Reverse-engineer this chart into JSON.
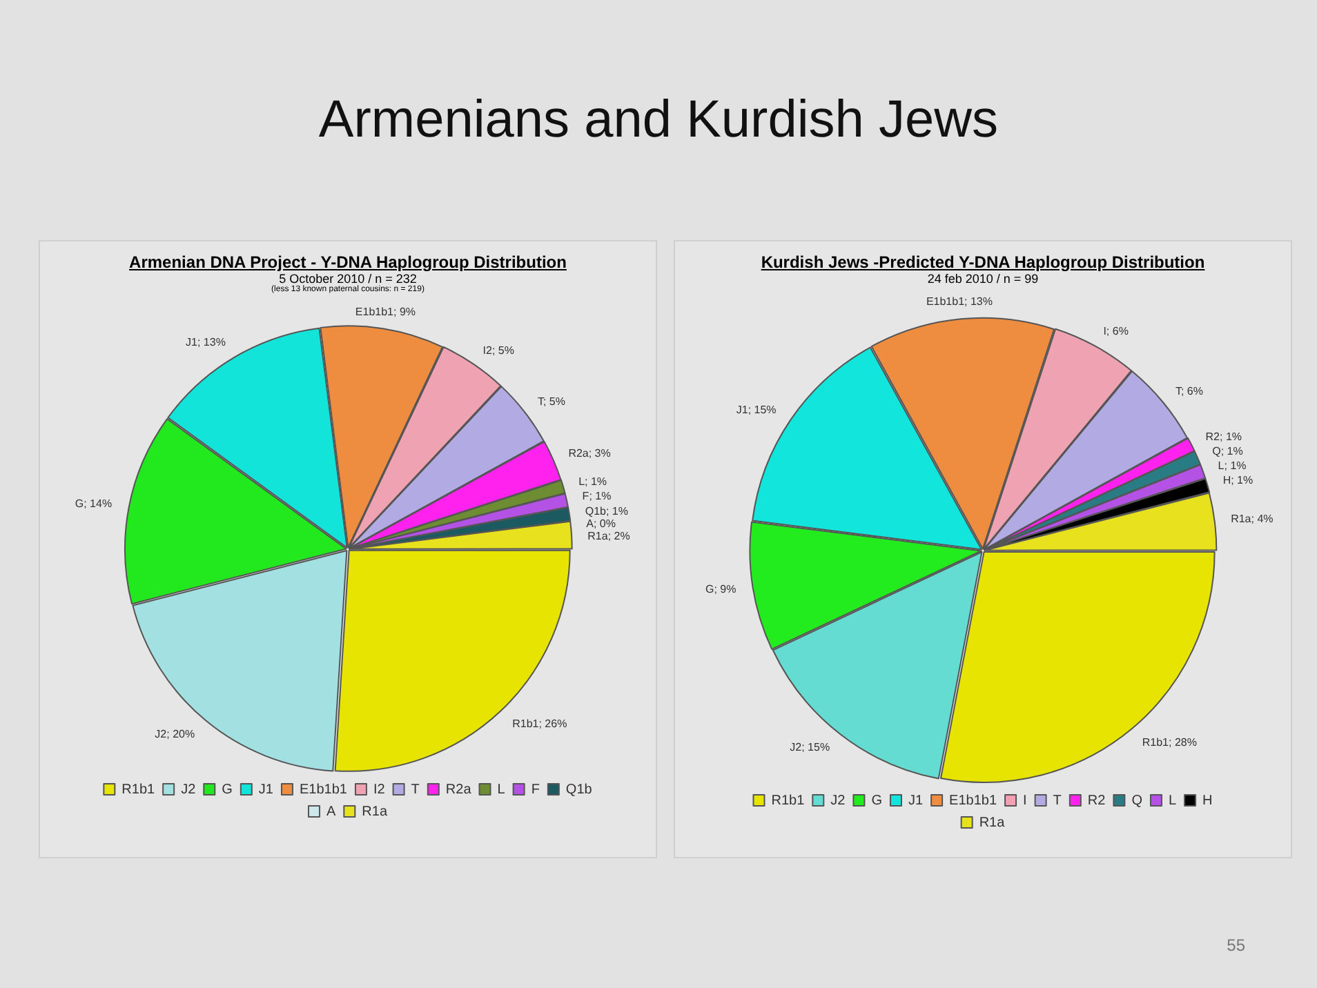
{
  "chart_data": [
    {
      "type": "pie",
      "title": "Armenian DNA Project - Y-DNA Haplogroup Distribution",
      "subtitle": "5 October 2010 / n = 232",
      "annotations": [
        "Armenians and Kurdish Jews",
        "(less 13 known paternal cousins: n = 219)"
      ],
      "categories": [
        "R1b1",
        "J2",
        "G",
        "J1",
        "E1b1b1",
        "I2",
        "T",
        "R2a",
        "L",
        "F",
        "Q1b",
        "A",
        "R1a"
      ],
      "values": [
        26,
        20,
        14,
        13,
        9,
        5,
        5,
        3,
        1,
        1,
        1,
        0,
        2
      ],
      "value_labels": [
        "R1b1; 26%",
        "J2; 20%",
        "G; 14%",
        "J1; 13%",
        "E1b1b1; 9%",
        "I2; 5%",
        "T; 5%",
        "R2a; 3%",
        "L; 1%",
        "F; 1%",
        "Q1b; 1%",
        "A; 0%",
        "R1a; 2%"
      ],
      "colors": [
        "#e6e400",
        "#a2e0e2",
        "#22e81e",
        "#12e4da",
        "#ee8c40",
        "#eea2b2",
        "#b2aae2",
        "#ff22ee",
        "#6e8c32",
        "#b452e6",
        "#1c5a62",
        "#cce8ea",
        "#e8e21e"
      ],
      "legend": "bottom"
    },
    {
      "type": "pie",
      "title": "Kurdish Jews -Predicted Y-DNA Haplogroup Distribution",
      "subtitle": "24 feb 2010 / n = 99",
      "annotations": [
        "55"
      ],
      "categories": [
        "R1b1",
        "J2",
        "G",
        "J1",
        "E1b1b1",
        "I",
        "T",
        "R2",
        "Q",
        "L",
        "H",
        "R1a"
      ],
      "values": [
        28,
        15,
        9,
        15,
        13,
        6,
        6,
        1,
        1,
        1,
        1,
        4
      ],
      "value_labels": [
        "R1b1; 28%",
        "J2; 15%",
        "G; 9%",
        "J1; 15%",
        "E1b1b1; 13%",
        "I; 6%",
        "T; 6%",
        "R2; 1%",
        "Q; 1%",
        "L; 1%",
        "H; 1%",
        "R1a; 4%"
      ],
      "colors": [
        "#e6e400",
        "#64dcd2",
        "#22ec1e",
        "#12e6dc",
        "#ee8c40",
        "#eea2b2",
        "#b2aae2",
        "#ff22ee",
        "#2a7c84",
        "#b452e6",
        "#000000",
        "#e8e21e"
      ],
      "legend": "bottom"
    }
  ]
}
